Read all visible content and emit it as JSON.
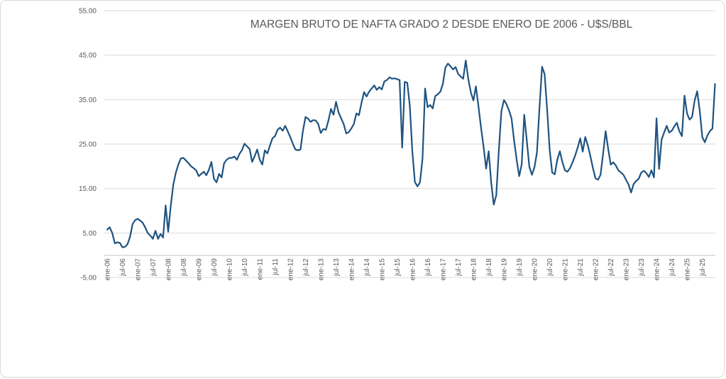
{
  "title": "MARGEN BRUTO DE NAFTA GRADO 2 DESDE ENERO DE 2006 - U$S/BBL",
  "colors": {
    "line": "#1F5381",
    "grid": "#D9D9D9",
    "axis": "#C6C6C6",
    "tick_text": "#595959",
    "title_text": "#595959",
    "background": "#FFFFFF",
    "border": "#D9D9D9"
  },
  "chart_data": {
    "type": "line",
    "title": "MARGEN BRUTO DE NAFTA GRADO 2 DESDE ENERO DE 2006 - U$S/BBL",
    "x_start": "ene-06",
    "x_end": "dic-25",
    "frequency": "monthly",
    "legend": false,
    "grid": true,
    "ylim": [
      -5,
      55
    ],
    "y_tick_labels": [
      "55.00",
      "45.00",
      "35.00",
      "25.00",
      "15.00",
      "5.00",
      "-5.00"
    ],
    "y_tick_values": [
      55,
      45,
      35,
      25,
      15,
      5,
      -5
    ],
    "x_tick_labels": [
      "ene-06",
      "jul-06",
      "ene-07",
      "jul-07",
      "ene-08",
      "jul-08",
      "ene-09",
      "jul-09",
      "ene-10",
      "jul-10",
      "ene-11",
      "jul-11",
      "ene-12",
      "jul-12",
      "ene-13",
      "jul-13",
      "ene-14",
      "jul-14",
      "ene-15",
      "jul-15",
      "ene-16",
      "jul-16",
      "ene-17",
      "jul-17",
      "ene-18",
      "jul-18",
      "ene-19",
      "jul-19",
      "ene-20",
      "jul-20",
      "ene-21",
      "jul-21",
      "ene-22",
      "jul-22",
      "ene-23",
      "jul-23",
      "ene-24",
      "jul-24",
      "ene-25",
      "jul-25"
    ],
    "x_tick_every_n_months": 6,
    "values": [
      5.8,
      6.3,
      5.0,
      2.7,
      2.9,
      2.8,
      1.8,
      1.9,
      2.5,
      4.2,
      7.0,
      7.9,
      8.2,
      7.8,
      7.3,
      6.2,
      5.0,
      4.4,
      3.7,
      5.5,
      3.7,
      4.8,
      4.0,
      11.2,
      5.3,
      11.1,
      15.9,
      18.6,
      20.4,
      21.8,
      21.9,
      21.3,
      20.7,
      20.0,
      19.6,
      19.1,
      17.8,
      18.3,
      18.8,
      18.0,
      19.2,
      21.0,
      17.2,
      16.4,
      18.3,
      17.5,
      20.7,
      21.5,
      21.9,
      21.9,
      22.2,
      21.5,
      22.8,
      23.6,
      25.1,
      24.5,
      23.9,
      21.0,
      22.3,
      23.8,
      21.5,
      20.4,
      23.6,
      22.9,
      24.7,
      26.3,
      26.8,
      28.2,
      28.7,
      28.0,
      29.1,
      27.9,
      26.6,
      25.1,
      23.8,
      23.6,
      23.8,
      28.0,
      31.1,
      30.7,
      30.0,
      30.4,
      30.3,
      29.5,
      27.5,
      28.4,
      28.2,
      30.3,
      32.9,
      31.6,
      34.5,
      32.1,
      30.8,
      29.5,
      27.4,
      27.7,
      28.5,
      29.5,
      31.9,
      31.5,
      34.3,
      36.7,
      35.7,
      36.8,
      37.5,
      38.2,
      37.2,
      37.8,
      37.3,
      39.1,
      39.4,
      40.0,
      39.7,
      39.8,
      39.6,
      39.4,
      24.2,
      39.0,
      38.8,
      33.5,
      23.4,
      16.5,
      15.5,
      16.4,
      21.8,
      37.5,
      33.3,
      33.8,
      33.0,
      35.8,
      36.2,
      36.8,
      38.5,
      42.2,
      43.1,
      42.5,
      41.8,
      42.3,
      40.8,
      40.2,
      39.7,
      43.8,
      39.6,
      36.6,
      34.8,
      38.0,
      33.5,
      28.7,
      24.4,
      19.5,
      23.4,
      16.4,
      11.4,
      13.5,
      23.6,
      32.4,
      34.9,
      34.0,
      32.6,
      30.8,
      25.8,
      21.5,
      17.8,
      20.4,
      31.6,
      25.8,
      19.9,
      18.1,
      19.8,
      23.1,
      33.2,
      42.4,
      40.7,
      32.7,
      23.6,
      18.6,
      18.2,
      21.5,
      23.4,
      20.9,
      19.1,
      18.8,
      19.6,
      20.9,
      22.4,
      24.2,
      26.3,
      23.3,
      26.6,
      24.7,
      22.3,
      19.6,
      17.3,
      17.0,
      18.1,
      22.8,
      27.9,
      23.9,
      20.4,
      20.9,
      20.2,
      19.1,
      18.6,
      18.1,
      17.0,
      15.9,
      14.1,
      16.0,
      16.7,
      17.2,
      18.6,
      19.0,
      18.5,
      17.6,
      19.1,
      17.5,
      30.8,
      19.4,
      26.0,
      27.6,
      29.1,
      27.6,
      28.0,
      29.0,
      29.8,
      27.9,
      26.8,
      35.9,
      31.9,
      30.5,
      31.1,
      34.8,
      36.9,
      32.5,
      26.6,
      25.4,
      26.9,
      27.9,
      28.5,
      38.5
    ]
  }
}
